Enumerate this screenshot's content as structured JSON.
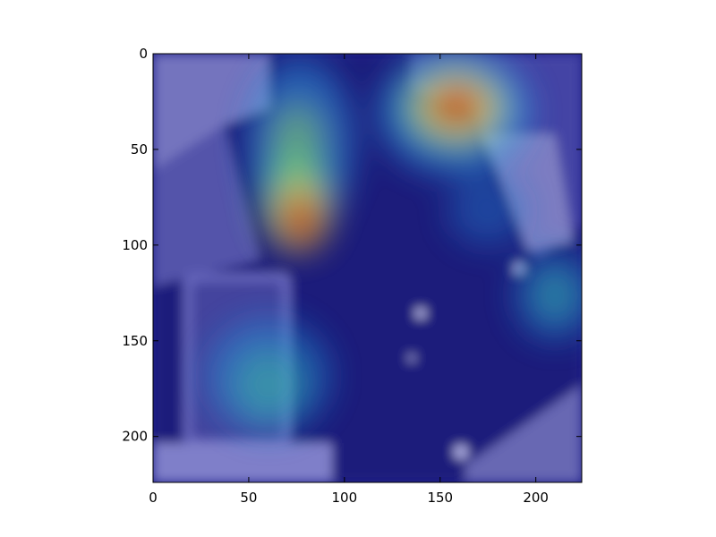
{
  "chart_data": {
    "type": "heatmap",
    "title": "",
    "xlabel": "",
    "ylabel": "",
    "xlim": [
      0,
      224
    ],
    "ylim": [
      224,
      0
    ],
    "y_axis_inverted": true,
    "grid": false,
    "legend": "none",
    "x_ticks": [
      0,
      50,
      100,
      150,
      200
    ],
    "y_ticks": [
      0,
      50,
      100,
      150,
      200
    ],
    "x_tick_labels": [
      "0",
      "50",
      "100",
      "150",
      "200"
    ],
    "y_tick_labels": [
      "0",
      "50",
      "100",
      "150",
      "200"
    ],
    "colormap": "jet",
    "background_image": "overhead-kitchen-photo",
    "hotspots": [
      {
        "x": 157,
        "y": 30,
        "intensity": 1.0,
        "radius": 28
      },
      {
        "x": 78,
        "y": 85,
        "intensity": 0.95,
        "radius": 24
      },
      {
        "x": 72,
        "y": 45,
        "intensity": 0.55,
        "radius": 28
      },
      {
        "x": 60,
        "y": 170,
        "intensity": 0.45,
        "radius": 30
      },
      {
        "x": 210,
        "y": 125,
        "intensity": 0.45,
        "radius": 22
      },
      {
        "x": 175,
        "y": 80,
        "intensity": 0.35,
        "radius": 22
      }
    ],
    "colors": {
      "background": "#20208c",
      "frame": "#000000"
    }
  }
}
